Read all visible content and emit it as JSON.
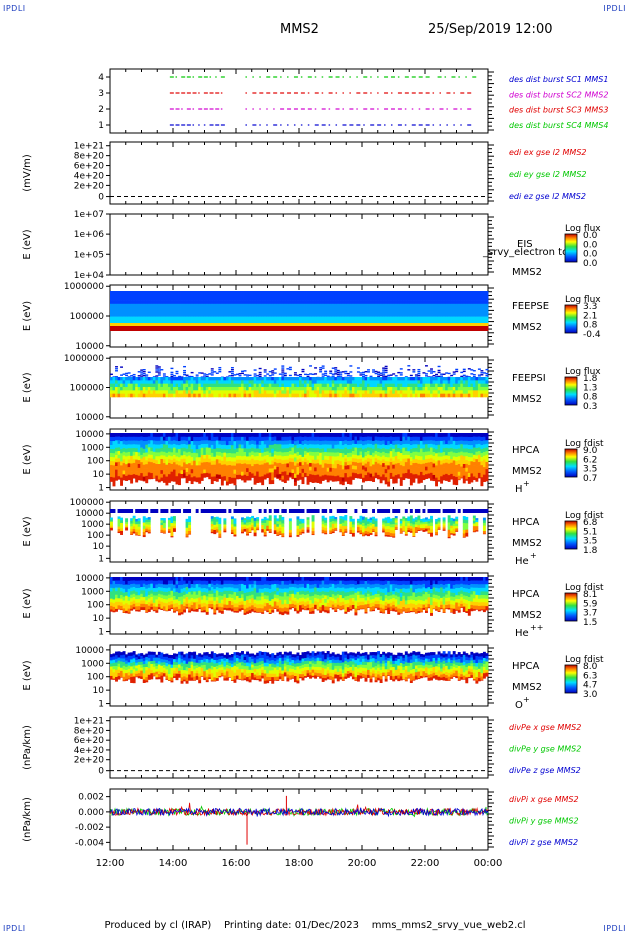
{
  "corner_labels": {
    "tl": "IPDLI",
    "tr": "IPDLI",
    "bl": "IPDLI",
    "br": "IPDLI"
  },
  "header": {
    "title": "MMS2",
    "date": "25/Sep/2019 12:00"
  },
  "footer": {
    "produced": "Produced by cl (IRAP)",
    "printing": "Printing date: 01/Dec/2023",
    "file": "mms_mms2_srvy_vue_web2.cl"
  },
  "x_axis": {
    "ticks": [
      "12:00",
      "14:00",
      "16:00",
      "18:00",
      "20:00",
      "22:00",
      "00:00"
    ]
  },
  "colors": {
    "red": "#e00000",
    "green": "#00c800",
    "blue": "#0000d0",
    "magenta": "#d000d0"
  },
  "chart_data": [
    {
      "type": "line",
      "name": "burst",
      "yticks": [
        "4",
        "3",
        "2",
        "1"
      ],
      "legend": [
        "des dist burst SC1 MMS1",
        "des dist burst SC2 MMS2",
        "des dist burst SC3 MMS3",
        "des dist burst SC4 MMS4"
      ],
      "legend_colors": [
        "#0000d0",
        "#d000d0",
        "#e00000",
        "#00c800"
      ],
      "series": [
        {
          "level": 4,
          "color": "#00c800",
          "segments": [
            [
              13.9,
              15.6
            ],
            [
              16.3,
              22.2
            ],
            [
              22.4,
              23.6
            ]
          ]
        },
        {
          "level": 3,
          "color": "#e00000",
          "segments": [
            [
              13.9,
              15.6
            ],
            [
              16.3,
              23.5
            ]
          ]
        },
        {
          "level": 2,
          "color": "#d000d0",
          "segments": [
            [
              13.9,
              15.6
            ],
            [
              16.3,
              23.5
            ]
          ]
        },
        {
          "level": 1,
          "color": "#0000d0",
          "segments": [
            [
              13.9,
              15.6
            ],
            [
              16.3,
              23.5
            ]
          ]
        }
      ]
    },
    {
      "type": "line",
      "name": "edi",
      "ylabel": "(mV/m)",
      "yticks": [
        "1e+21",
        "8e+20",
        "6e+20",
        "4e+20",
        "2e+20",
        "0"
      ],
      "legend": [
        "edi ex gse l2 MMS2",
        "edi ey gse l2 MMS2",
        "edi ez gse l2 MMS2"
      ],
      "legend_colors": [
        "#e00000",
        "#00c800",
        "#0000d0"
      ]
    },
    {
      "type": "heatmap",
      "name": "eis",
      "ylabel": "E (eV)",
      "yticks": [
        "1e+07",
        "1e+06",
        "1e+05",
        "1e+04"
      ],
      "labels": [
        "EIS",
        "MMS2"
      ],
      "overlay": "_srvy_electron to",
      "cbar_title": "Log flux",
      "cbar_ticks": [
        "0.0",
        "0.0",
        "0.0",
        "0.0"
      ]
    },
    {
      "type": "heatmap",
      "name": "feepse",
      "ylabel": "E (eV)",
      "yticks": [
        "1000000",
        "100000",
        "10000"
      ],
      "labels": [
        "FEEPSE",
        "MMS2"
      ],
      "cbar_title": "Log flux",
      "cbar_ticks": [
        "3.3",
        "2.1",
        "0.8",
        "-0.4"
      ]
    },
    {
      "type": "heatmap",
      "name": "feepsi",
      "ylabel": "E (eV)",
      "yticks": [
        "1000000",
        "100000",
        "10000"
      ],
      "labels": [
        "FEEPSI",
        "MMS2"
      ],
      "cbar_title": "Log flux",
      "cbar_ticks": [
        "1.8",
        "1.3",
        "0.8",
        "0.3"
      ]
    },
    {
      "type": "heatmap",
      "name": "hpca-h",
      "ylabel": "E (eV)",
      "yticks": [
        "10000",
        "1000",
        "100",
        "10",
        "1"
      ],
      "labels": [
        "HPCA",
        "MMS2",
        "H",
        "+"
      ],
      "cbar_title": "Log fdist",
      "cbar_ticks": [
        "9.0",
        "6.2",
        "3.5",
        "0.7"
      ]
    },
    {
      "type": "heatmap",
      "name": "hpca-he",
      "ylabel": "E (eV)",
      "yticks": [
        "100000",
        "10000",
        "1000",
        "100",
        "10",
        "1"
      ],
      "labels": [
        "HPCA",
        "MMS2",
        "He",
        "+"
      ],
      "cbar_title": "Log fdist",
      "cbar_ticks": [
        "6.8",
        "5.1",
        "3.5",
        "1.8"
      ]
    },
    {
      "type": "heatmap",
      "name": "hpca-hepp",
      "ylabel": "E (eV)",
      "yticks": [
        "10000",
        "1000",
        "100",
        "10",
        "1"
      ],
      "labels": [
        "HPCA",
        "MMS2",
        "He",
        "++"
      ],
      "cbar_title": "Log fdist",
      "cbar_ticks": [
        "8.1",
        "5.9",
        "3.7",
        "1.5"
      ]
    },
    {
      "type": "heatmap",
      "name": "hpca-o",
      "ylabel": "E (eV)",
      "yticks": [
        "10000",
        "1000",
        "100",
        "10",
        "1"
      ],
      "labels": [
        "HPCA",
        "MMS2",
        "O",
        "+"
      ],
      "cbar_title": "Log fdist",
      "cbar_ticks": [
        "8.0",
        "6.3",
        "4.7",
        "3.0"
      ]
    },
    {
      "type": "line",
      "name": "divpe",
      "ylabel": "(nPa/km)",
      "yticks": [
        "1e+21",
        "8e+20",
        "6e+20",
        "4e+20",
        "2e+20",
        "0"
      ],
      "legend": [
        "divPe x gse MMS2",
        "divPe y gse MMS2",
        "divPe z gse MMS2"
      ],
      "legend_colors": [
        "#e00000",
        "#00c800",
        "#0000d0"
      ]
    },
    {
      "type": "line",
      "name": "divpi",
      "ylabel": "(nPa/km)",
      "yticks": [
        "0.002",
        "0.000",
        "-0.002",
        "-0.004"
      ],
      "ylim": [
        -0.005,
        0.003
      ],
      "legend": [
        "divPi x gse MMS2",
        "divPi y gse MMS2",
        "divPi z gse MMS2"
      ],
      "legend_colors": [
        "#e00000",
        "#00c800",
        "#0000d0"
      ]
    }
  ]
}
